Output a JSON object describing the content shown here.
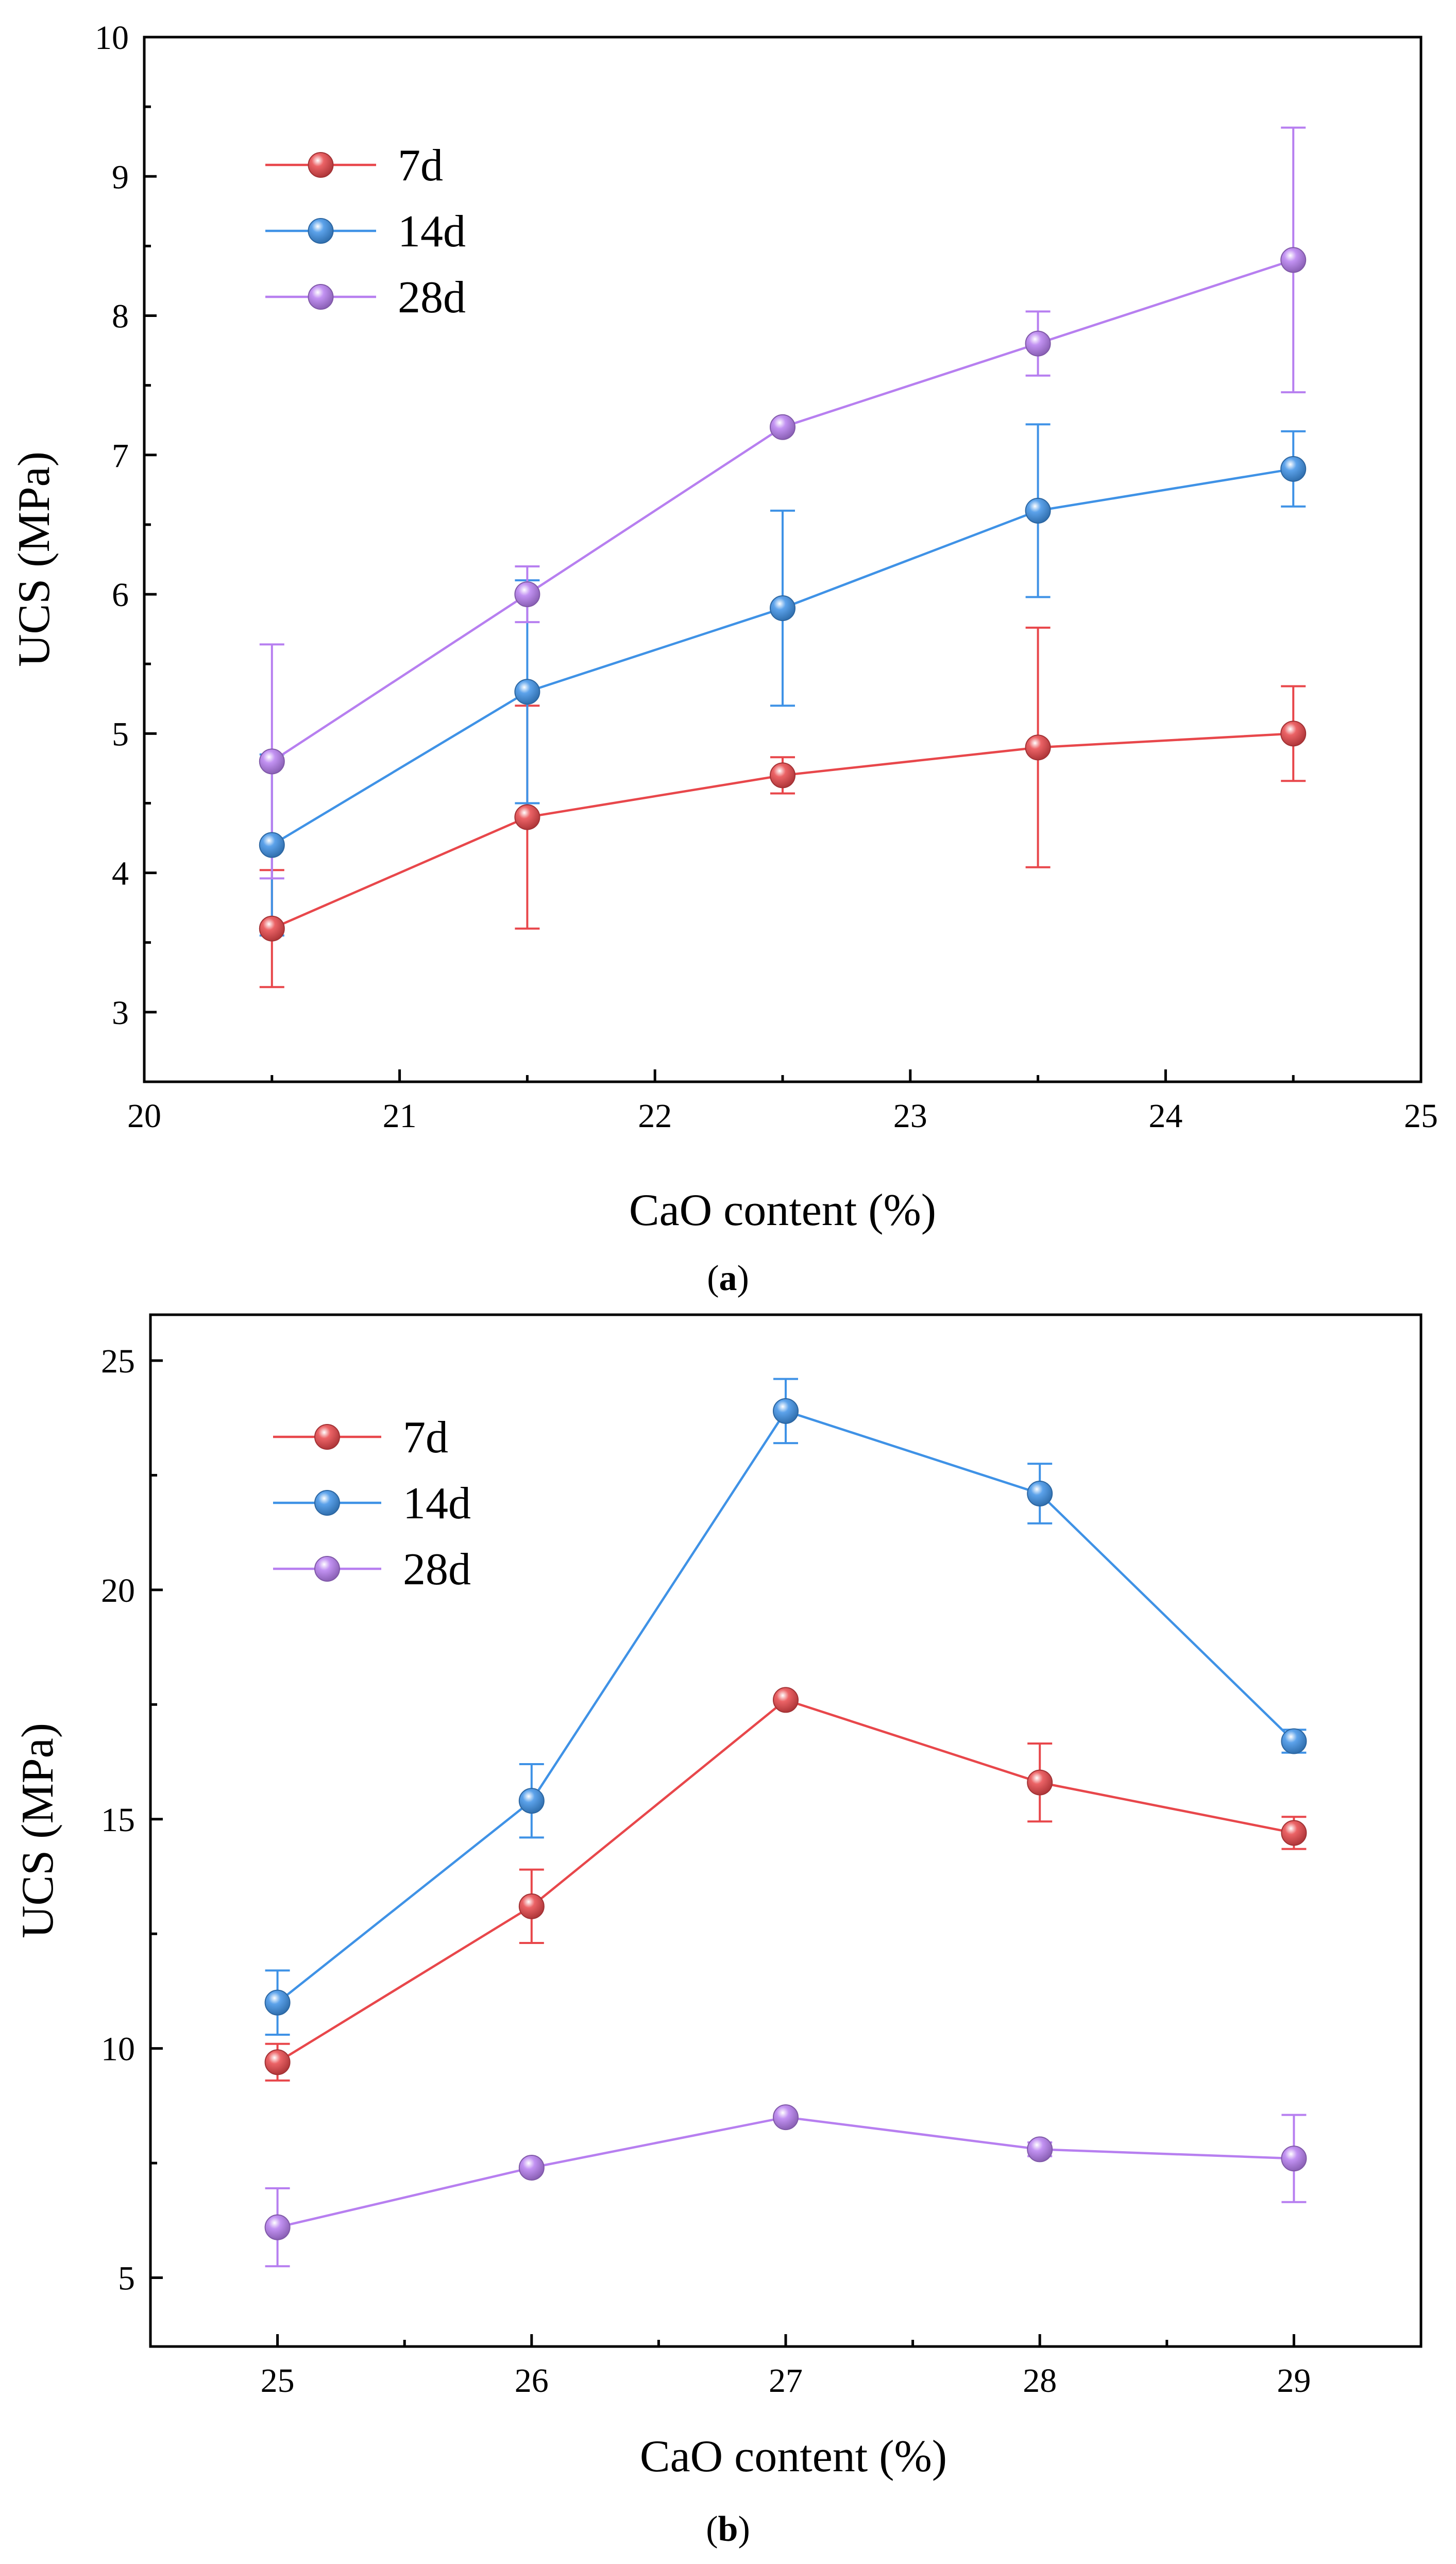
{
  "figure": {
    "panels": [
      "(a)",
      "(b)"
    ]
  },
  "chart_data": [
    {
      "type": "line",
      "panel_label": "a",
      "title": "",
      "xlabel": "CaO content (%)",
      "ylabel": "UCS (MPa)",
      "xlim": [
        20,
        25
      ],
      "ylim": [
        2.5,
        10
      ],
      "xticks": [
        20,
        21,
        22,
        23,
        24,
        25
      ],
      "yticks": [
        3,
        4,
        5,
        6,
        7,
        8,
        9,
        10
      ],
      "xtick_labels": [
        "20",
        "21",
        "22",
        "23",
        "24",
        "25"
      ],
      "ytick_labels": [
        "3",
        "4",
        "5",
        "6",
        "7",
        "8",
        "9",
        "10"
      ],
      "legend_position": "top-left",
      "x": [
        20.5,
        21.5,
        22.5,
        23.5,
        24.5
      ],
      "series": [
        {
          "name": "7d",
          "color": "#e8474b",
          "values": [
            3.6,
            4.4,
            4.7,
            4.9,
            5.0
          ],
          "errors": [
            0.42,
            0.8,
            0.13,
            0.86,
            0.34
          ]
        },
        {
          "name": "14d",
          "color": "#3f92e6",
          "values": [
            4.2,
            5.3,
            5.9,
            6.6,
            6.9
          ],
          "errors": [
            0.65,
            0.8,
            0.7,
            0.62,
            0.27
          ]
        },
        {
          "name": "28d",
          "color": "#b77ff0",
          "values": [
            4.8,
            6.0,
            7.2,
            7.8,
            8.4
          ],
          "errors": [
            0.84,
            0.2,
            0.0,
            0.23,
            0.95
          ]
        }
      ]
    },
    {
      "type": "line",
      "panel_label": "b",
      "title": "",
      "xlabel": "CaO content (%)",
      "ylabel": "UCS (MPa)",
      "xlim": [
        24.5,
        29.5
      ],
      "ylim": [
        3.5,
        26
      ],
      "xticks": [
        25,
        26,
        27,
        28,
        29
      ],
      "yticks": [
        5,
        10,
        15,
        20,
        25
      ],
      "xtick_labels": [
        "25",
        "26",
        "27",
        "28",
        "29"
      ],
      "ytick_labels": [
        "5",
        "10",
        "15",
        "20",
        "25"
      ],
      "legend_position": "top-left",
      "x": [
        25,
        26,
        27,
        28,
        29
      ],
      "series": [
        {
          "name": "7d",
          "color": "#e8474b",
          "values": [
            9.7,
            13.1,
            17.6,
            15.8,
            14.7
          ],
          "errors": [
            0.4,
            0.8,
            0.0,
            0.85,
            0.35
          ]
        },
        {
          "name": "14d",
          "color": "#3f92e6",
          "values": [
            11.0,
            15.4,
            23.9,
            22.1,
            16.7
          ],
          "errors": [
            0.7,
            0.8,
            0.7,
            0.65,
            0.25
          ]
        },
        {
          "name": "28d",
          "color": "#b77ff0",
          "values": [
            6.1,
            7.4,
            8.5,
            7.8,
            7.6
          ],
          "errors": [
            0.85,
            0.0,
            0.0,
            0.15,
            0.95
          ]
        }
      ]
    }
  ]
}
